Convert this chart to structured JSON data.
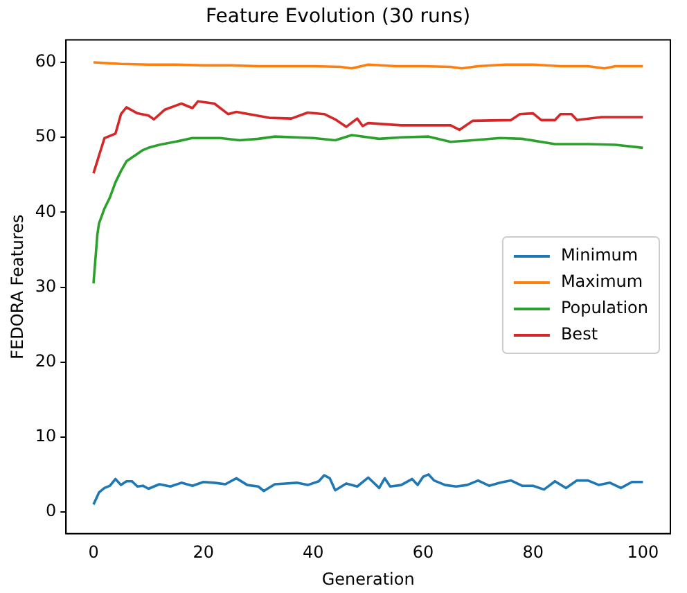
{
  "chart_data": {
    "type": "line",
    "title": "Feature Evolution (30 runs)",
    "xlabel": "Generation",
    "ylabel": "FEDORA Features",
    "xlim": [
      -5,
      105
    ],
    "ylim": [
      -2.9,
      63
    ],
    "xticks": [
      0,
      20,
      40,
      60,
      80,
      100
    ],
    "yticks": [
      0,
      10,
      20,
      30,
      40,
      50,
      60
    ],
    "grid": false,
    "legend": "right",
    "marker": "none",
    "line_style": "solid",
    "series": [
      {
        "name": "Minimum",
        "color": "#1f77b4",
        "x": [
          0,
          1,
          2,
          3,
          4,
          5,
          6,
          7,
          8,
          9,
          10,
          12,
          14,
          16,
          18,
          20,
          22,
          24,
          26,
          28,
          30,
          31,
          33,
          35,
          37,
          39,
          41,
          42,
          43,
          44,
          46,
          48,
          50,
          52,
          53,
          54,
          56,
          58,
          59,
          60,
          61,
          62,
          64,
          66,
          68,
          70,
          72,
          74,
          76,
          78,
          80,
          82,
          84,
          86,
          88,
          90,
          92,
          94,
          96,
          98,
          100
        ],
        "values": [
          1.0,
          2.6,
          3.2,
          3.5,
          4.4,
          3.6,
          4.1,
          4.1,
          3.4,
          3.5,
          3.1,
          3.7,
          3.4,
          3.9,
          3.5,
          4.0,
          3.9,
          3.7,
          4.5,
          3.6,
          3.4,
          2.8,
          3.7,
          3.8,
          3.9,
          3.6,
          4.1,
          4.9,
          4.5,
          2.9,
          3.8,
          3.4,
          4.6,
          3.2,
          4.5,
          3.4,
          3.6,
          4.4,
          3.6,
          4.7,
          5.0,
          4.2,
          3.6,
          3.4,
          3.6,
          4.2,
          3.5,
          3.9,
          4.2,
          3.5,
          3.5,
          3.0,
          4.1,
          3.2,
          4.2,
          4.2,
          3.6,
          3.9,
          3.2,
          4.0,
          4.0
        ]
      },
      {
        "name": "Maximum",
        "color": "#ff7f0e",
        "x": [
          0,
          5,
          10,
          15,
          20,
          25,
          30,
          35,
          40,
          45,
          47,
          50,
          55,
          60,
          65,
          67,
          70,
          75,
          80,
          85,
          90,
          93,
          95,
          100
        ],
        "values": [
          60.0,
          59.8,
          59.7,
          59.7,
          59.6,
          59.6,
          59.5,
          59.5,
          59.5,
          59.4,
          59.2,
          59.7,
          59.5,
          59.5,
          59.4,
          59.2,
          59.5,
          59.7,
          59.7,
          59.5,
          59.5,
          59.2,
          59.5,
          59.5
        ]
      },
      {
        "name": "Population",
        "color": "#2ca02c",
        "x": [
          0,
          0.7,
          1,
          2,
          3,
          4,
          5,
          6,
          8,
          9,
          10,
          12,
          15.5,
          18,
          23,
          26.6,
          30,
          33,
          40,
          44,
          47,
          52,
          56,
          61,
          65,
          69,
          74,
          78,
          84,
          90,
          95,
          100
        ],
        "values": [
          30.5,
          37,
          38.5,
          40.5,
          42,
          44,
          45.5,
          46.8,
          47.8,
          48.3,
          48.6,
          49.0,
          49.5,
          49.9,
          49.9,
          49.6,
          49.8,
          50.1,
          49.9,
          49.6,
          50.3,
          49.8,
          50.0,
          50.1,
          49.4,
          49.6,
          49.9,
          49.8,
          49.1,
          49.1,
          49.0,
          48.6
        ]
      },
      {
        "name": "Best",
        "color": "#d62728",
        "x": [
          0,
          2,
          4,
          5,
          6,
          8,
          10,
          11,
          13,
          16,
          18,
          19,
          22,
          24.5,
          26,
          29,
          32,
          36,
          39,
          42,
          44,
          46,
          48,
          49,
          50,
          56,
          65,
          66.6,
          69,
          76,
          77.6,
          80,
          81.5,
          84,
          85,
          87,
          88,
          92.5,
          100
        ],
        "values": [
          45.2,
          49.9,
          50.5,
          53.1,
          54.0,
          53.2,
          52.9,
          52.4,
          53.7,
          54.5,
          53.9,
          54.8,
          54.5,
          53.1,
          53.4,
          53.0,
          52.6,
          52.5,
          53.3,
          53.1,
          52.4,
          51.4,
          52.5,
          51.5,
          51.9,
          51.6,
          51.6,
          51.0,
          52.2,
          52.3,
          53.1,
          53.2,
          52.3,
          52.3,
          53.1,
          53.1,
          52.3,
          52.7,
          52.7
        ]
      }
    ]
  }
}
